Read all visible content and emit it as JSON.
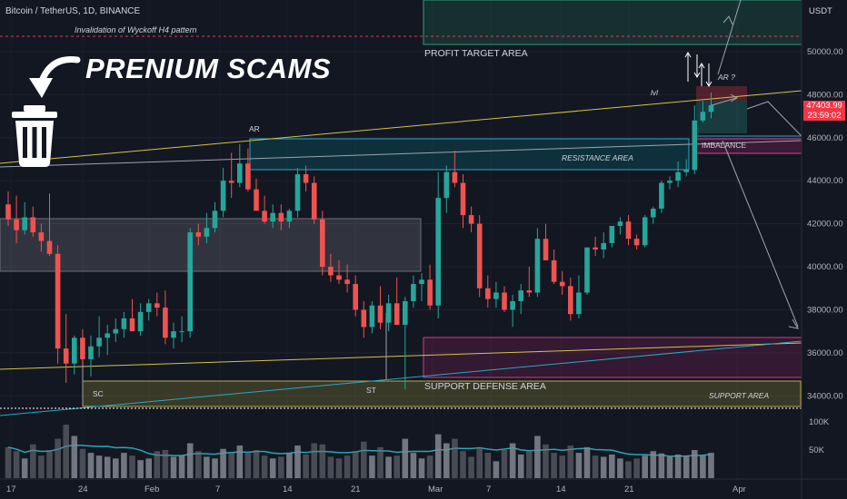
{
  "header": {
    "ticker": "Bitcoin / TetherUS, 1D, BINANCE",
    "currency": "USDT",
    "headline": "PRENIUM SCAMS"
  },
  "last_price": {
    "price": "47403.99",
    "countdown": "23:59:02"
  },
  "colors": {
    "background": "#131722",
    "up": "#26a69a",
    "down": "#ef5350",
    "highlight_red": "#f23645",
    "trendline": "#d4c34a",
    "channel": "#9fa3ad",
    "pink_zone": "#e040a0"
  },
  "annotations": {
    "invalidation": "Invalidation of Wyckoff H4 pattern",
    "profit_target": "PROFIT TARGET AREA",
    "resistance": "RESISTANCE AREA",
    "imbalance": "IMBALANCE",
    "support_defense": "SUPPORT DEFENSE AREA",
    "support_area": "SUPPORT AREA",
    "ar_left": "AR",
    "ar_right": "AR ?",
    "lvl": "lvl",
    "sc": "SC",
    "st": "ST"
  },
  "chart_data": {
    "type": "candlestick",
    "title": "Bitcoin / TetherUS, 1D, BINANCE",
    "xlabel": "",
    "ylabel": "",
    "y_axis_unit": "USDT",
    "ylim": [
      33000,
      52400
    ],
    "y_ticks": [
      "50000.00",
      "48000.00",
      "46000.00",
      "44000.00",
      "42000.00",
      "40000.00",
      "38000.00",
      "36000.00",
      "34000.00"
    ],
    "x_ticks": [
      "17",
      "24",
      "Feb",
      "7",
      "14",
      "21",
      "Mar",
      "7",
      "14",
      "21",
      "Apr"
    ],
    "volume_ticks": [
      "100K",
      "50K"
    ],
    "grid": true,
    "candles": [
      {
        "o": 42900,
        "h": 43500,
        "l": 41900,
        "c": 42200
      },
      {
        "o": 42200,
        "h": 43300,
        "l": 41100,
        "c": 41700
      },
      {
        "o": 41700,
        "h": 43000,
        "l": 41500,
        "c": 42300
      },
      {
        "o": 42300,
        "h": 42800,
        "l": 41400,
        "c": 41600
      },
      {
        "o": 41600,
        "h": 42000,
        "l": 40700,
        "c": 41200
      },
      {
        "o": 41200,
        "h": 43400,
        "l": 40500,
        "c": 40600
      },
      {
        "o": 40600,
        "h": 41000,
        "l": 35500,
        "c": 36200
      },
      {
        "o": 36200,
        "h": 37800,
        "l": 34600,
        "c": 35500
      },
      {
        "o": 35500,
        "h": 36800,
        "l": 35000,
        "c": 36700
      },
      {
        "o": 36700,
        "h": 37100,
        "l": 35500,
        "c": 35700
      },
      {
        "o": 35700,
        "h": 36800,
        "l": 34900,
        "c": 36300
      },
      {
        "o": 36300,
        "h": 37700,
        "l": 35800,
        "c": 36700
      },
      {
        "o": 36700,
        "h": 37300,
        "l": 35900,
        "c": 36900
      },
      {
        "o": 36900,
        "h": 37600,
        "l": 36500,
        "c": 37100
      },
      {
        "o": 37100,
        "h": 37900,
        "l": 36700,
        "c": 37600
      },
      {
        "o": 37600,
        "h": 38500,
        "l": 37100,
        "c": 37000
      },
      {
        "o": 37000,
        "h": 38300,
        "l": 36800,
        "c": 37900
      },
      {
        "o": 37900,
        "h": 38500,
        "l": 37500,
        "c": 38300
      },
      {
        "o": 38300,
        "h": 38800,
        "l": 37700,
        "c": 38100
      },
      {
        "o": 38100,
        "h": 38900,
        "l": 36400,
        "c": 36700
      },
      {
        "o": 36700,
        "h": 37400,
        "l": 36200,
        "c": 37000
      },
      {
        "o": 37000,
        "h": 37700,
        "l": 36500,
        "c": 37000
      },
      {
        "o": 37000,
        "h": 41800,
        "l": 36700,
        "c": 41600
      },
      {
        "o": 41600,
        "h": 42000,
        "l": 41000,
        "c": 41400
      },
      {
        "o": 41400,
        "h": 42500,
        "l": 41100,
        "c": 41800
      },
      {
        "o": 41800,
        "h": 43000,
        "l": 41600,
        "c": 42600
      },
      {
        "o": 42600,
        "h": 44600,
        "l": 42300,
        "c": 44000
      },
      {
        "o": 44000,
        "h": 45300,
        "l": 43200,
        "c": 43900
      },
      {
        "o": 43900,
        "h": 45700,
        "l": 43700,
        "c": 44800
      },
      {
        "o": 44800,
        "h": 45500,
        "l": 43500,
        "c": 43600
      },
      {
        "o": 43600,
        "h": 44100,
        "l": 42700,
        "c": 42600
      },
      {
        "o": 42600,
        "h": 43300,
        "l": 42000,
        "c": 42100
      },
      {
        "o": 42100,
        "h": 42900,
        "l": 41800,
        "c": 42500
      },
      {
        "o": 42500,
        "h": 42900,
        "l": 41700,
        "c": 42100
      },
      {
        "o": 42100,
        "h": 42700,
        "l": 41800,
        "c": 42600
      },
      {
        "o": 42600,
        "h": 44600,
        "l": 42300,
        "c": 44300
      },
      {
        "o": 44300,
        "h": 44700,
        "l": 43500,
        "c": 43900
      },
      {
        "o": 43900,
        "h": 44200,
        "l": 42000,
        "c": 42200
      },
      {
        "o": 42200,
        "h": 42600,
        "l": 39600,
        "c": 40000
      },
      {
        "o": 40000,
        "h": 40600,
        "l": 39300,
        "c": 39600
      },
      {
        "o": 39600,
        "h": 40300,
        "l": 39200,
        "c": 39400
      },
      {
        "o": 39400,
        "h": 40100,
        "l": 38800,
        "c": 39200
      },
      {
        "o": 39200,
        "h": 39600,
        "l": 37700,
        "c": 38000
      },
      {
        "o": 38000,
        "h": 38400,
        "l": 36700,
        "c": 37200
      },
      {
        "o": 37200,
        "h": 38400,
        "l": 36900,
        "c": 38200
      },
      {
        "o": 38200,
        "h": 39100,
        "l": 37100,
        "c": 37400
      },
      {
        "o": 37400,
        "h": 38700,
        "l": 37000,
        "c": 38300
      },
      {
        "o": 38300,
        "h": 39500,
        "l": 37300,
        "c": 37300
      },
      {
        "o": 37300,
        "h": 38600,
        "l": 34300,
        "c": 38400
      },
      {
        "o": 38400,
        "h": 39600,
        "l": 38100,
        "c": 39200
      },
      {
        "o": 39200,
        "h": 39700,
        "l": 38400,
        "c": 39400
      },
      {
        "o": 39400,
        "h": 40100,
        "l": 38000,
        "c": 38200
      },
      {
        "o": 38200,
        "h": 44400,
        "l": 37600,
        "c": 43200
      },
      {
        "o": 43200,
        "h": 44700,
        "l": 42500,
        "c": 44400
      },
      {
        "o": 44400,
        "h": 45400,
        "l": 43700,
        "c": 43900
      },
      {
        "o": 43900,
        "h": 44300,
        "l": 41800,
        "c": 42400
      },
      {
        "o": 42400,
        "h": 42800,
        "l": 41600,
        "c": 42000
      },
      {
        "o": 42000,
        "h": 42400,
        "l": 38600,
        "c": 39000
      },
      {
        "o": 39000,
        "h": 39600,
        "l": 38100,
        "c": 38500
      },
      {
        "o": 38500,
        "h": 39300,
        "l": 38100,
        "c": 38800
      },
      {
        "o": 38800,
        "h": 39100,
        "l": 37900,
        "c": 38000
      },
      {
        "o": 38000,
        "h": 38700,
        "l": 37200,
        "c": 38400
      },
      {
        "o": 38400,
        "h": 39200,
        "l": 37800,
        "c": 38900
      },
      {
        "o": 38900,
        "h": 40000,
        "l": 38600,
        "c": 38800
      },
      {
        "o": 38800,
        "h": 41800,
        "l": 38600,
        "c": 41300
      },
      {
        "o": 41300,
        "h": 42000,
        "l": 40400,
        "c": 40300
      },
      {
        "o": 40300,
        "h": 40800,
        "l": 39200,
        "c": 39300
      },
      {
        "o": 39300,
        "h": 39800,
        "l": 38700,
        "c": 39100
      },
      {
        "o": 39100,
        "h": 39500,
        "l": 37500,
        "c": 37800
      },
      {
        "o": 37800,
        "h": 39600,
        "l": 37600,
        "c": 38800
      },
      {
        "o": 38800,
        "h": 40800,
        "l": 38700,
        "c": 40900
      },
      {
        "o": 40900,
        "h": 41400,
        "l": 40500,
        "c": 40800
      },
      {
        "o": 40800,
        "h": 41600,
        "l": 40400,
        "c": 41100
      },
      {
        "o": 41100,
        "h": 41900,
        "l": 40900,
        "c": 41900
      },
      {
        "o": 41900,
        "h": 42300,
        "l": 41500,
        "c": 42100
      },
      {
        "o": 42100,
        "h": 42400,
        "l": 41000,
        "c": 41300
      },
      {
        "o": 41300,
        "h": 41500,
        "l": 40800,
        "c": 41000
      },
      {
        "o": 41000,
        "h": 42400,
        "l": 40900,
        "c": 42300
      },
      {
        "o": 42300,
        "h": 42800,
        "l": 42000,
        "c": 42700
      },
      {
        "o": 42700,
        "h": 44000,
        "l": 42500,
        "c": 43900
      },
      {
        "o": 43900,
        "h": 44200,
        "l": 43600,
        "c": 44000
      },
      {
        "o": 44000,
        "h": 44900,
        "l": 43700,
        "c": 44400
      },
      {
        "o": 44400,
        "h": 45000,
        "l": 44200,
        "c": 44500
      },
      {
        "o": 44500,
        "h": 47500,
        "l": 44300,
        "c": 46800
      },
      {
        "o": 46800,
        "h": 47700,
        "l": 46700,
        "c": 47200
      },
      {
        "o": 47200,
        "h": 48100,
        "l": 46900,
        "c": 47500
      }
    ],
    "volume": [
      55,
      48,
      35,
      60,
      40,
      50,
      70,
      95,
      75,
      52,
      45,
      40,
      38,
      35,
      45,
      40,
      32,
      35,
      48,
      50,
      38,
      40,
      62,
      48,
      38,
      35,
      52,
      45,
      58,
      45,
      50,
      40,
      35,
      38,
      45,
      58,
      42,
      62,
      60,
      38,
      35,
      40,
      48,
      65,
      40,
      55,
      38,
      40,
      70,
      45,
      35,
      40,
      78,
      62,
      70,
      48,
      38,
      55,
      45,
      30,
      50,
      62,
      42,
      48,
      75,
      60,
      45,
      40,
      58,
      45,
      55,
      40,
      38,
      42,
      35,
      30,
      35,
      40,
      48,
      44,
      38,
      42,
      40,
      50,
      40,
      45
    ]
  }
}
